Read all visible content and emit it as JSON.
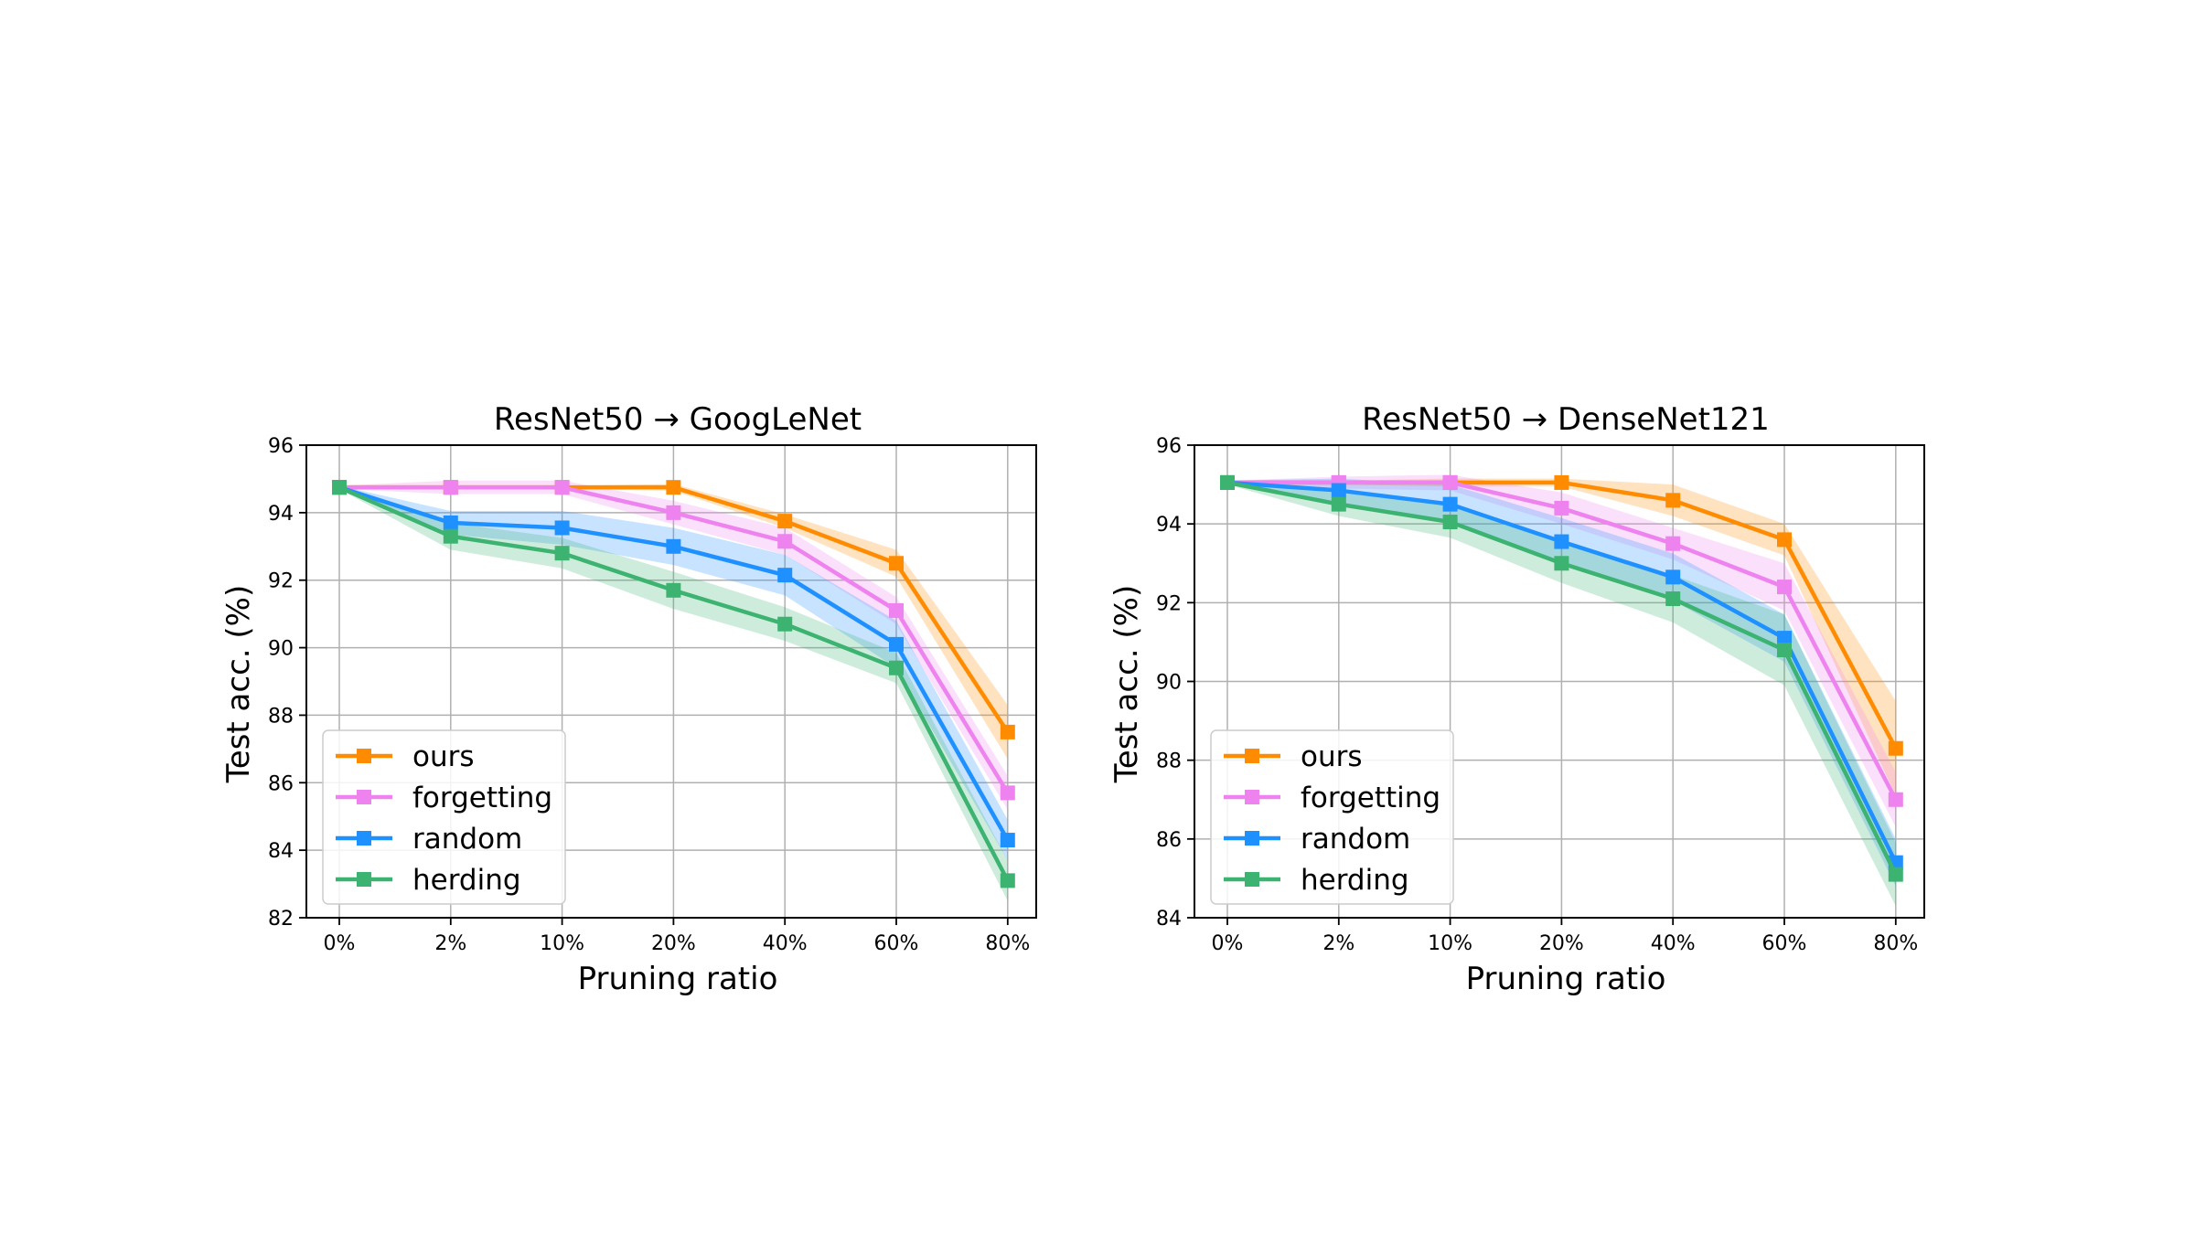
{
  "chart_data": [
    {
      "type": "line",
      "title": "ResNet50 → GoogLeNet",
      "xlabel": "Pruning ratio",
      "ylabel": "Test acc. (%)",
      "categories": [
        "0%",
        "2%",
        "10%",
        "20%",
        "40%",
        "60%",
        "80%"
      ],
      "ylim": [
        82,
        96
      ],
      "yticks": [
        82,
        84,
        86,
        88,
        90,
        92,
        94,
        96
      ],
      "ytick_labels": [
        "82",
        "84",
        "86",
        "88",
        "90",
        "92",
        "94",
        "96"
      ],
      "grid": true,
      "legend_position": "lower-left",
      "series": [
        {
          "name": "ours",
          "color": "#ff8c00",
          "values": [
            94.75,
            94.75,
            94.75,
            94.75,
            93.75,
            92.5,
            87.5
          ],
          "band": [
            0.05,
            0.05,
            0.05,
            0.1,
            0.2,
            0.4,
            0.8
          ]
        },
        {
          "name": "forgetting",
          "color": "#ee82ee",
          "values": [
            94.75,
            94.75,
            94.75,
            94.0,
            93.15,
            91.1,
            85.7
          ],
          "band": [
            0.05,
            0.2,
            0.2,
            0.35,
            0.4,
            0.4,
            0.5
          ]
        },
        {
          "name": "random",
          "color": "#1e90ff",
          "values": [
            94.75,
            93.7,
            93.55,
            93.0,
            92.15,
            90.1,
            84.3
          ],
          "band": [
            0.05,
            0.35,
            0.5,
            0.55,
            0.6,
            0.7,
            0.6
          ]
        },
        {
          "name": "herding",
          "color": "#3cb371",
          "values": [
            94.75,
            93.3,
            92.8,
            91.7,
            90.7,
            89.4,
            83.1
          ],
          "band": [
            0.05,
            0.4,
            0.45,
            0.55,
            0.5,
            0.45,
            0.6
          ]
        }
      ]
    },
    {
      "type": "line",
      "title": "ResNet50 → DenseNet121",
      "xlabel": "Pruning ratio",
      "ylabel": "Test acc. (%)",
      "categories": [
        "0%",
        "2%",
        "10%",
        "20%",
        "40%",
        "60%",
        "80%"
      ],
      "ylim": [
        84,
        96
      ],
      "yticks": [
        84,
        86,
        88,
        90,
        92,
        94,
        96
      ],
      "ytick_labels": [
        "84",
        "86",
        "88",
        "90",
        "92",
        "94",
        "96"
      ],
      "grid": true,
      "legend_position": "lower-left",
      "series": [
        {
          "name": "ours",
          "color": "#ff8c00",
          "values": [
            95.05,
            95.05,
            95.05,
            95.05,
            94.6,
            93.6,
            88.3
          ],
          "band": [
            0.05,
            0.05,
            0.1,
            0.1,
            0.4,
            0.4,
            1.2
          ]
        },
        {
          "name": "forgetting",
          "color": "#ee82ee",
          "values": [
            95.05,
            95.05,
            95.05,
            94.4,
            93.5,
            92.4,
            87.0
          ],
          "band": [
            0.05,
            0.15,
            0.2,
            0.4,
            0.4,
            0.6,
            0.7
          ]
        },
        {
          "name": "random",
          "color": "#1e90ff",
          "values": [
            95.05,
            94.85,
            94.5,
            93.55,
            92.65,
            91.1,
            85.4
          ],
          "band": [
            0.05,
            0.3,
            0.5,
            0.6,
            0.6,
            0.6,
            0.6
          ]
        },
        {
          "name": "herding",
          "color": "#3cb371",
          "values": [
            95.05,
            94.5,
            94.05,
            93.0,
            92.1,
            90.8,
            85.1
          ],
          "band": [
            0.05,
            0.3,
            0.4,
            0.5,
            0.6,
            0.9,
            0.8
          ]
        }
      ]
    }
  ]
}
